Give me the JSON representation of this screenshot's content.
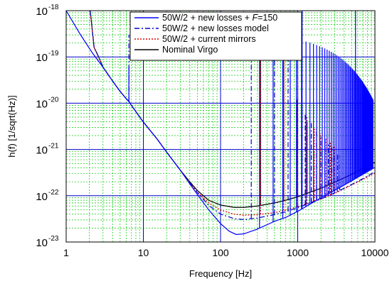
{
  "chart_data": {
    "type": "line",
    "xlabel": "Frequency [Hz]",
    "ylabel": "h(f) [1/sqrt(Hz)]",
    "xscale": "log",
    "yscale": "log",
    "xlim": [
      1,
      10000
    ],
    "ylim": [
      1e-23,
      1e-18
    ],
    "x_ticks": [
      {
        "value": 1,
        "label": "1"
      },
      {
        "value": 10,
        "label": "10"
      },
      {
        "value": 100,
        "label": "100"
      },
      {
        "value": 1000,
        "label": "1000"
      },
      {
        "value": 10000,
        "label": "10000"
      }
    ],
    "y_ticks": [
      {
        "value": 1e-23,
        "mantissa": "10",
        "exponent": "-23"
      },
      {
        "value": 1e-22,
        "mantissa": "10",
        "exponent": "-22"
      },
      {
        "value": 1e-21,
        "mantissa": "10",
        "exponent": "-21"
      },
      {
        "value": 1e-20,
        "mantissa": "10",
        "exponent": "-20"
      },
      {
        "value": 1e-19,
        "mantissa": "10",
        "exponent": "-19"
      },
      {
        "value": 1e-18,
        "mantissa": "10",
        "exponent": "-18"
      }
    ],
    "grid": {
      "major": true,
      "minor": true,
      "major_color": "#0000cc",
      "minor_color": "#00cc00"
    },
    "legend_position": "top-right",
    "series": [
      {
        "name": "50W/2 + new losses + F=150",
        "legend_parts": [
          {
            "text": "50W/2 + new losses + ",
            "italic": false
          },
          {
            "text": "F",
            "italic": true
          },
          {
            "text": "=150",
            "italic": false
          }
        ],
        "color": "#0000ff",
        "style": "solid",
        "points": [
          [
            1,
            1e-18
          ],
          [
            1.5,
            3.2e-19
          ],
          [
            2.2,
            1.2e-19
          ],
          [
            3,
            6e-20
          ],
          [
            4,
            3e-20
          ],
          [
            5,
            1.8e-20
          ],
          [
            6,
            1.25e-20
          ],
          [
            6.6,
            1.05e-20
          ],
          [
            7,
            9e-21
          ],
          [
            10,
            3.9e-21
          ],
          [
            15,
            1.7e-21
          ],
          [
            20,
            8.8e-22
          ],
          [
            30,
            3.6e-22
          ],
          [
            40,
            1.8e-22
          ],
          [
            50,
            1.07e-22
          ],
          [
            70,
            5e-23
          ],
          [
            100,
            2.5e-23
          ],
          [
            130,
            1.7e-23
          ],
          [
            160,
            1.45e-23
          ],
          [
            200,
            1.5e-23
          ],
          [
            300,
            1.9e-23
          ],
          [
            500,
            2.8e-23
          ],
          [
            700,
            3.4e-23
          ],
          [
            1000,
            4.6e-23
          ],
          [
            2000,
            9e-23
          ],
          [
            3000,
            1.3e-22
          ],
          [
            5000,
            2.1e-22
          ],
          [
            7000,
            2.9e-22
          ],
          [
            10000,
            4.1e-22
          ]
        ],
        "peaks": [
          [
            6.5,
            6e-20
          ],
          [
            1140,
            1e-18
          ],
          [
            5600,
            1e-18
          ]
        ],
        "violin_spikes": {
          "start": 320,
          "spacing": 160,
          "end": 9500,
          "peak_start": 3e-19,
          "peak_end": 1.2e-20
        }
      },
      {
        "name": "50W/2 + new losses model",
        "legend_parts": [
          {
            "text": "50W/2 + new losses model",
            "italic": false
          }
        ],
        "color": "#0000cc",
        "style": "dash-dot",
        "points": [
          [
            2.05,
            1e-18
          ],
          [
            2.3,
            1.6e-19
          ],
          [
            2.6,
            1.05e-19
          ],
          [
            3,
            6e-20
          ],
          [
            4,
            3e-20
          ],
          [
            5,
            1.8e-20
          ],
          [
            6,
            1.25e-20
          ],
          [
            6.6,
            1.05e-20
          ],
          [
            7,
            9e-21
          ],
          [
            10,
            3.9e-21
          ],
          [
            15,
            1.7e-21
          ],
          [
            20,
            8.8e-22
          ],
          [
            30,
            3.6e-22
          ],
          [
            40,
            1.9e-22
          ],
          [
            50,
            1.18e-22
          ],
          [
            70,
            6.2e-23
          ],
          [
            100,
            4e-23
          ],
          [
            150,
            3.2e-23
          ],
          [
            200,
            3.05e-23
          ],
          [
            300,
            3.3e-23
          ],
          [
            500,
            3.9e-23
          ],
          [
            700,
            4.5e-23
          ],
          [
            1000,
            5.5e-23
          ],
          [
            2000,
            8.5e-23
          ],
          [
            3000,
            1.15e-22
          ],
          [
            5000,
            1.75e-22
          ],
          [
            7000,
            2.35e-22
          ],
          [
            10000,
            3.3e-22
          ]
        ],
        "peaks": [
          [
            6.5,
            3e-19
          ],
          [
            250,
            1.3e-19
          ],
          [
            500,
            1.3e-19
          ],
          [
            750,
            1.3e-19
          ],
          [
            1000,
            1.3e-19
          ],
          [
            1250,
            6e-21
          ],
          [
            1500,
            4e-21
          ],
          [
            1750,
            2.8e-21
          ],
          [
            2000,
            2e-21
          ],
          [
            2250,
            1.6e-21
          ],
          [
            2500,
            1.3e-21
          ],
          [
            2750,
            1.1e-21
          ],
          [
            3000,
            9.5e-22
          ],
          [
            3250,
            8.5e-22
          ],
          [
            3500,
            7.5e-22
          ]
        ]
      },
      {
        "name": "50W/2 + current mirrors",
        "legend_parts": [
          {
            "text": "50W/2 + current mirrors",
            "italic": false
          }
        ],
        "color": "#dd0000",
        "style": "dotted",
        "points": [
          [
            2.05,
            1e-18
          ],
          [
            2.3,
            1.6e-19
          ],
          [
            2.6,
            1.05e-19
          ],
          [
            3,
            6e-20
          ],
          [
            4,
            3e-20
          ],
          [
            5,
            1.8e-20
          ],
          [
            6,
            1.25e-20
          ],
          [
            6.6,
            1.05e-20
          ],
          [
            7,
            9e-21
          ],
          [
            10,
            3.9e-21
          ],
          [
            15,
            1.7e-21
          ],
          [
            20,
            8.8e-22
          ],
          [
            30,
            3.6e-22
          ],
          [
            40,
            1.9e-22
          ],
          [
            50,
            1.2e-22
          ],
          [
            70,
            7e-23
          ],
          [
            100,
            4.9e-23
          ],
          [
            150,
            4e-23
          ],
          [
            200,
            3.8e-23
          ],
          [
            300,
            3.9e-23
          ],
          [
            500,
            4.3e-23
          ],
          [
            700,
            4.9e-23
          ],
          [
            1000,
            5.8e-23
          ],
          [
            2000,
            8.5e-23
          ],
          [
            3000,
            1.12e-22
          ],
          [
            5000,
            1.7e-22
          ],
          [
            7000,
            2.25e-22
          ],
          [
            10000,
            3.1e-22
          ]
        ],
        "peaks": [
          [
            330,
            1e-19
          ],
          [
            660,
            1e-19
          ],
          [
            990,
            1.2e-20
          ],
          [
            1320,
            5e-21
          ],
          [
            1650,
            3e-21
          ],
          [
            1980,
            2.2e-21
          ],
          [
            2310,
            1.7e-21
          ],
          [
            2640,
            1.4e-21
          ],
          [
            2970,
            1.2e-21
          ]
        ]
      },
      {
        "name": "Nominal Virgo",
        "legend_parts": [
          {
            "text": "Nominal Virgo",
            "italic": false
          }
        ],
        "color": "#000000",
        "style": "solid",
        "points": [
          [
            2.05,
            1e-18
          ],
          [
            2.3,
            1.6e-19
          ],
          [
            2.6,
            1.05e-19
          ],
          [
            3,
            6e-20
          ],
          [
            4,
            3e-20
          ],
          [
            5,
            1.8e-20
          ],
          [
            6,
            1.25e-20
          ],
          [
            6.6,
            1.05e-20
          ],
          [
            7,
            9e-21
          ],
          [
            10,
            3.9e-21
          ],
          [
            15,
            1.7e-21
          ],
          [
            20,
            8.8e-22
          ],
          [
            30,
            3.6e-22
          ],
          [
            40,
            2e-22
          ],
          [
            50,
            1.3e-22
          ],
          [
            70,
            8e-23
          ],
          [
            100,
            6.3e-23
          ],
          [
            150,
            5.6e-23
          ],
          [
            200,
            5.6e-23
          ],
          [
            300,
            6e-23
          ],
          [
            500,
            7e-23
          ],
          [
            700,
            8e-23
          ],
          [
            1000,
            9.5e-23
          ],
          [
            2000,
            1.45e-22
          ],
          [
            3000,
            1.95e-22
          ],
          [
            5000,
            2.9e-22
          ],
          [
            7000,
            3.9e-22
          ],
          [
            10000,
            5.3e-22
          ]
        ],
        "peaks": [
          [
            330,
            1.5e-19
          ],
          [
            660,
            1e-19
          ],
          [
            990,
            1.2e-20
          ],
          [
            1320,
            4e-21
          ]
        ]
      }
    ]
  }
}
